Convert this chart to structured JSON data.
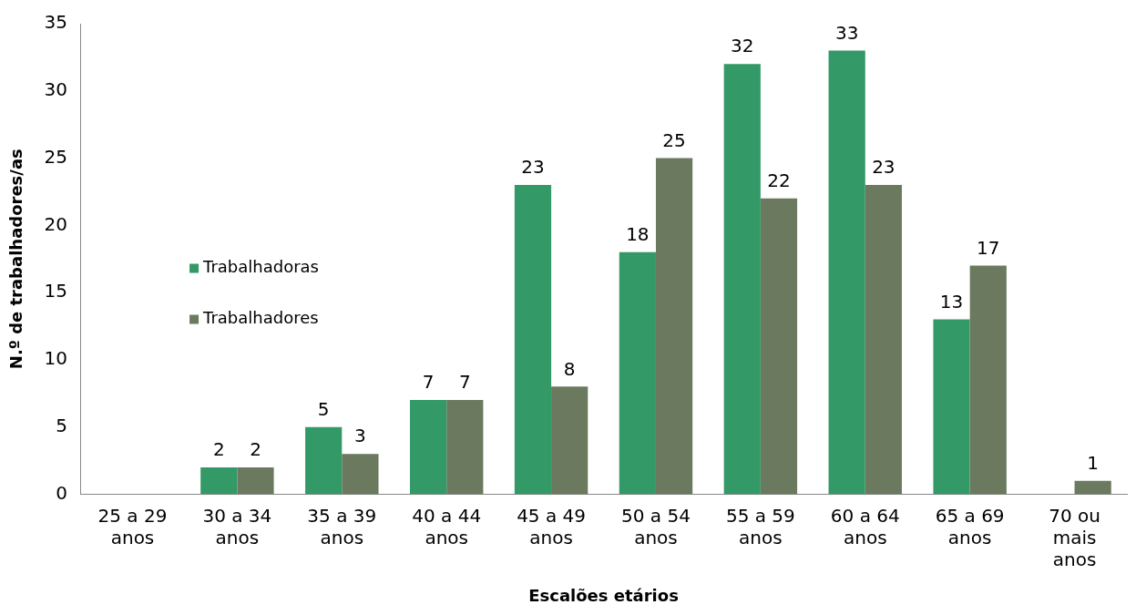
{
  "chart_data": {
    "type": "bar",
    "xlabel": "Escalões etários",
    "ylabel": "N.º de trabalhadores/as",
    "categories": [
      "25 a 29 anos",
      "30 a 34 anos",
      "35 a 39 anos",
      "40 a 44 anos",
      "45 a 49 anos",
      "50 a 54 anos",
      "55 a 59 anos",
      "60 a 64 anos",
      "65 a 69 anos",
      "70 ou mais anos"
    ],
    "series": [
      {
        "name": "Trabalhadoras",
        "color": "#339966",
        "values": [
          null,
          2,
          5,
          7,
          23,
          18,
          32,
          33,
          13,
          null
        ]
      },
      {
        "name": "Trabalhadores",
        "color": "#6b7a5f",
        "values": [
          null,
          2,
          3,
          7,
          8,
          25,
          22,
          23,
          17,
          1
        ]
      }
    ],
    "ylim": [
      0,
      35
    ],
    "yticks": [
      0,
      5,
      10,
      15,
      20,
      25,
      30,
      35
    ],
    "grid": false,
    "legend": "left",
    "data_labels": true
  }
}
